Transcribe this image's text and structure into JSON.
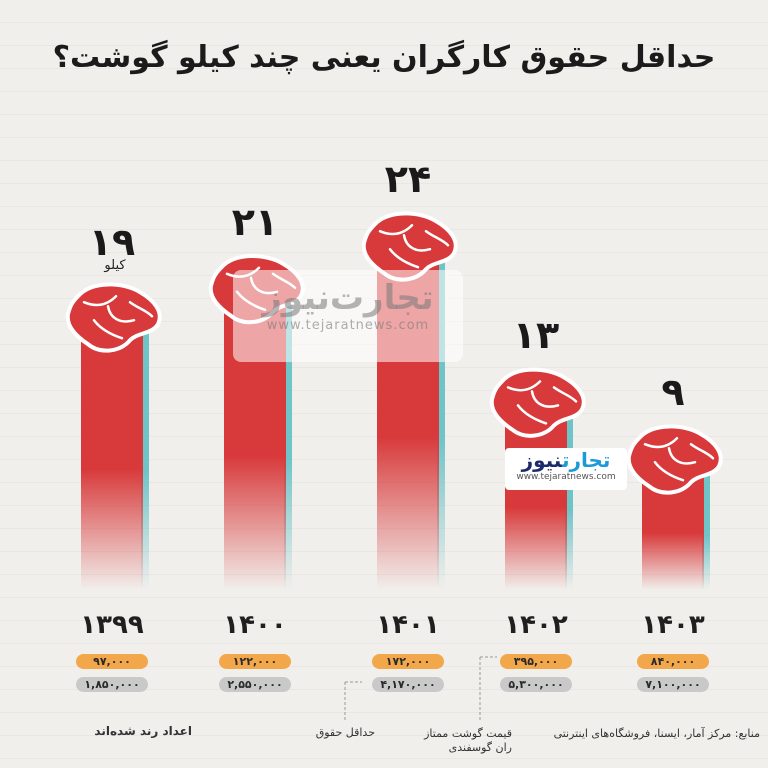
{
  "title": "حداقل حقوق کارگران یعنی چند کیلو گوشت؟",
  "unit_label": "کیلو",
  "colors": {
    "bar": "#d8393a",
    "bar_side": "#6fc4c8",
    "meat": "#d8393a",
    "pill_orange": "#f2a74a",
    "pill_gray": "#c9c9c9"
  },
  "chart_data": {
    "type": "bar",
    "categories": [
      "۱۳۹۹",
      "۱۴۰۰",
      "۱۴۰۱",
      "۱۴۰۲",
      "۱۴۰۳"
    ],
    "values": [
      19,
      21,
      24,
      13,
      9
    ],
    "value_labels": [
      "۱۹",
      "۲۱",
      "۲۴",
      "۱۳",
      "۹"
    ],
    "meat_price": [
      "۹۷,۰۰۰",
      "۱۲۲,۰۰۰",
      "۱۷۲,۰۰۰",
      "۳۹۵,۰۰۰",
      "۸۴۰,۰۰۰"
    ],
    "minimum_wage": [
      "۱,۸۵۰,۰۰۰",
      "۲,۵۵۰,۰۰۰",
      "۴,۱۷۰,۰۰۰",
      "۵,۳۰۰,۰۰۰",
      "۷,۱۰۰,۰۰۰"
    ],
    "xlabel": "",
    "ylabel": "",
    "ylim": [
      0,
      24
    ]
  },
  "footer": {
    "rounded_note": "اعداد رند شده‌اند",
    "legend_wage": "حداقل حقوق",
    "legend_meat_line1": "قیمت گوشت ممتاز",
    "legend_meat_line2": "ران گوسفندی",
    "sources": "منابع: مرکز آمار، ایسنا، فروشگاه‌های اینترنتی"
  },
  "watermark": {
    "name": "تجارت‌نیوز",
    "url": "www.tejaratnews.com"
  },
  "logo": {
    "name_part1": "تجارت",
    "name_part2": "نیوز",
    "url": "www.tejaratnews.com"
  }
}
